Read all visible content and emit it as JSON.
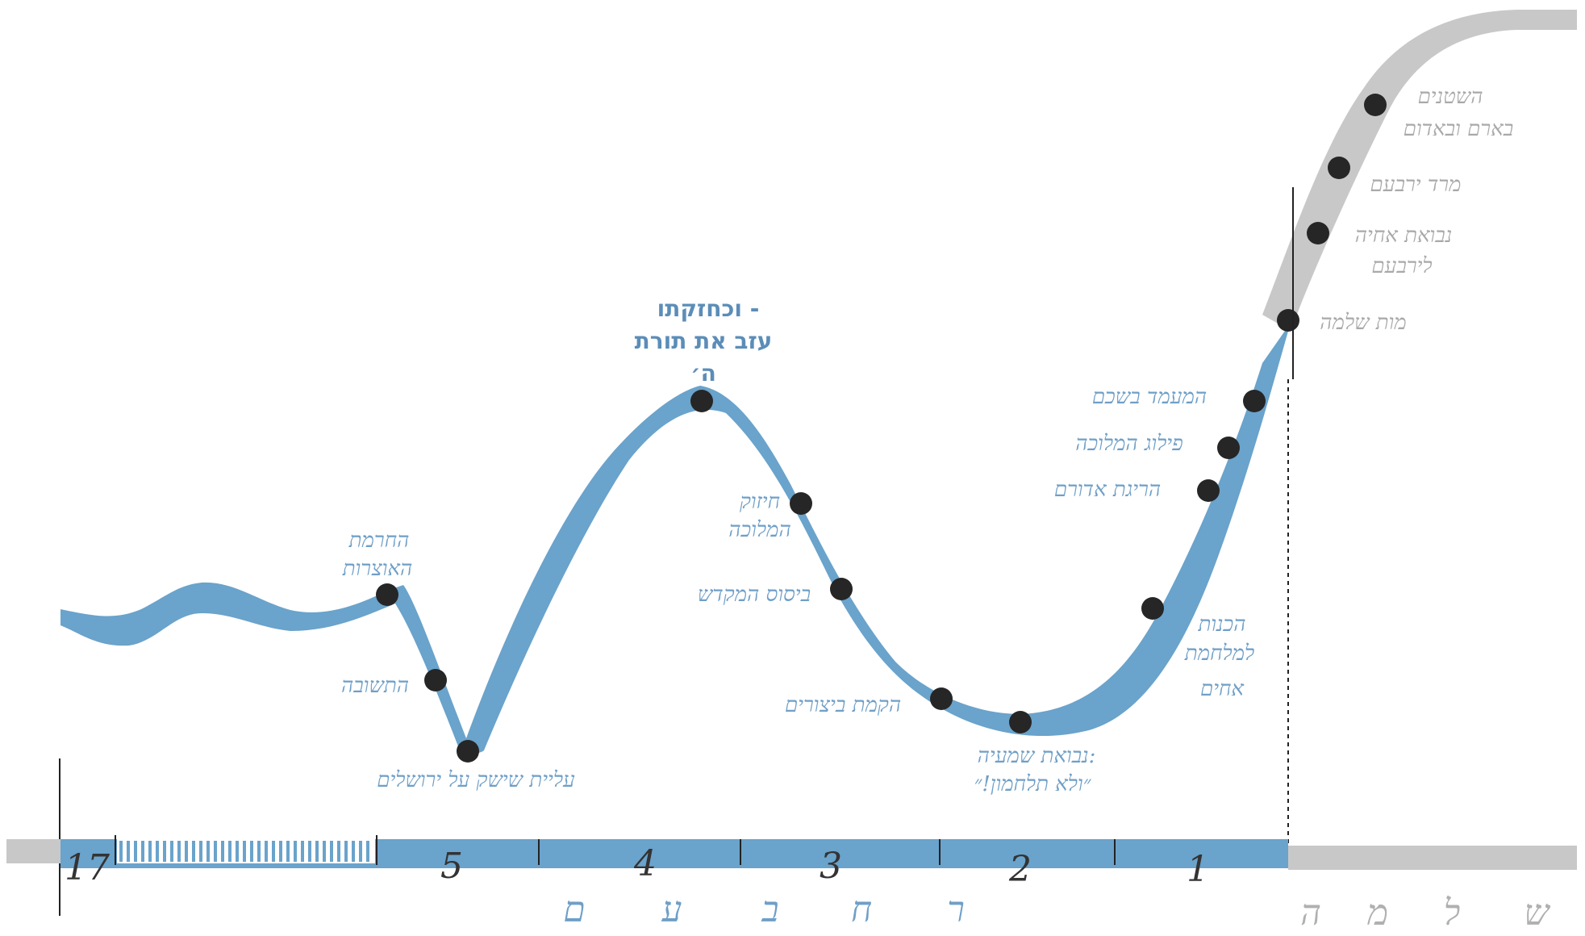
{
  "colors": {
    "blue": "#6aa3cb",
    "grey": "#c8c8c8",
    "dot": "#262626",
    "label_blue": "#6f9fc7",
    "label_grey": "#a9a9a9"
  },
  "title": {
    "line1": "וכחזקתו -",
    "line2": "עזב את תורת",
    "line3": "ה׳"
  },
  "labels": {
    "peak_slaughter_1": "החרמת",
    "peak_slaughter_2": "האוצרות",
    "repentance": "התשובה",
    "shishak": "עליית שישק על ירושלים",
    "strengthen_1": "חיזוק",
    "strengthen_2": "המלוכה",
    "temple": "ביסוס המקדש",
    "fortified": "הקמת ביצורים",
    "prophecy_1": "נבואת שמעיה:",
    "prophecy_2": "״ולא תלחמון!״",
    "war_prep_1": "הכנות",
    "war_prep_2": "למלחמת",
    "war_prep_3": "אחים",
    "killing": "הריגת אדורם",
    "split": "פילוג המלוכה",
    "shechem": "המעמד בשכם",
    "solomon_death": "מות שלמה",
    "ahiya_1": "נבואת אחיה",
    "ahiya_2": "לירבעם",
    "jeroboam_rebel": "מרד ירבעם",
    "enemies_1": "השטנים",
    "enemies_2": "בארם ובאדום"
  },
  "timeline": {
    "segments": [
      "17",
      "5",
      "4",
      "3",
      "2",
      "1"
    ]
  },
  "names": {
    "rehoboam": [
      "ר",
      "ח",
      "ב",
      "ע",
      "ם"
    ],
    "solomon": [
      "ש",
      "ל",
      "מ",
      "ה"
    ]
  }
}
